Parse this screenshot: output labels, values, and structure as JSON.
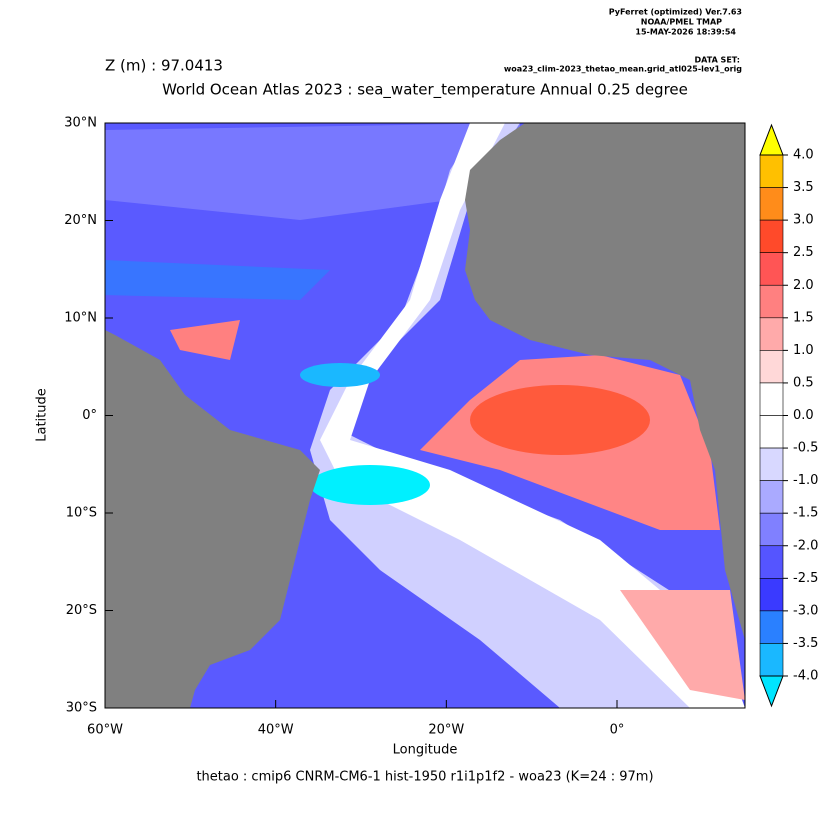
{
  "header": {
    "software": "PyFerret (optimized) Ver.7.63",
    "lab": "NOAA/PMEL TMAP",
    "timestamp": "15-MAY-2026 18:39:54",
    "dataset_label": "DATA SET:",
    "dataset": "woa23_clim-2023_thetao_mean.grid_atl025-lev1_orig",
    "depth": "Z (m) : 97.0413",
    "title": "World Ocean Atlas 2023 : sea_water_temperature Annual  0.25 degree"
  },
  "map": {
    "x_label": "Longitude",
    "y_label": "Latitude",
    "footer": "thetao : cmip6 CNRM-CM6-1 hist-1950 r1i1p1f2 - woa23  (K=24 : 97m)",
    "lon_range": [
      -60,
      15
    ],
    "lat_range": [
      -30,
      30
    ],
    "lon_ticks": [
      {
        "value": -60,
        "label": "60°W"
      },
      {
        "value": -40,
        "label": "40°W"
      },
      {
        "value": -20,
        "label": "20°W"
      },
      {
        "value": 0,
        "label": "0°"
      }
    ],
    "lat_ticks": [
      {
        "value": 30,
        "label": "30°N"
      },
      {
        "value": 20,
        "label": "20°N"
      },
      {
        "value": 10,
        "label": "10°N"
      },
      {
        "value": 0,
        "label": "0°"
      },
      {
        "value": -10,
        "label": "10°S"
      },
      {
        "value": -20,
        "label": "20°S"
      },
      {
        "value": -30,
        "label": "30°S"
      }
    ]
  },
  "colorbar": {
    "levels": [
      {
        "value": 4,
        "label": "4.0"
      },
      {
        "value": 3.5,
        "label": "3.5"
      },
      {
        "value": 3,
        "label": "3.0"
      },
      {
        "value": 2.5,
        "label": "2.5"
      },
      {
        "value": 2,
        "label": "2.0"
      },
      {
        "value": 1.5,
        "label": "1.5"
      },
      {
        "value": 1,
        "label": "1.0"
      },
      {
        "value": 0.5,
        "label": "0.5"
      },
      {
        "value": 0,
        "label": "0.0"
      },
      {
        "value": -0.5,
        "label": "-0.5"
      },
      {
        "value": -1,
        "label": "-1.0"
      },
      {
        "value": -1.5,
        "label": "-1.5"
      },
      {
        "value": -2,
        "label": "-2.0"
      },
      {
        "value": -2.5,
        "label": "-2.5"
      },
      {
        "value": -3,
        "label": "-3.0"
      },
      {
        "value": -3.5,
        "label": "-3.5"
      },
      {
        "value": -4,
        "label": "-4.0"
      }
    ],
    "colors": [
      "#ffc000",
      "#ff8c1a",
      "#ff4a2a",
      "#ff5555",
      "#ff8080",
      "#ffaaaa",
      "#ffd8d8",
      "#ffffff",
      "#ffffff",
      "#d8d8ff",
      "#aaaaff",
      "#8080ff",
      "#5555ff",
      "#3a3aff",
      "#2a80ff",
      "#1ab8ff"
    ],
    "over_color": "#ffff00",
    "under_color": "#00e5ff"
  }
}
